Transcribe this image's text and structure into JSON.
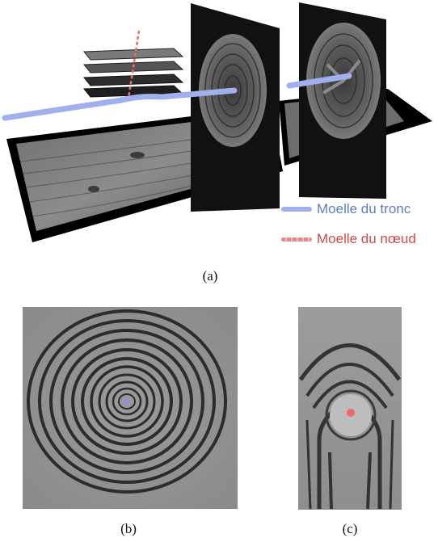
{
  "figure": {
    "legend": [
      {
        "label": "Moelle du tronc",
        "color": "#5d7bc8",
        "line_color": "#9fb0ec",
        "style": "solid"
      },
      {
        "label": "Moelle du nœud",
        "color": "#cf4a4a",
        "line_color": "#e58a8a",
        "style": "dashed"
      }
    ],
    "captions": {
      "a": "(a)",
      "b": "(b)",
      "c": "(c)"
    },
    "colors": {
      "trunk_pith": "#9fb0ec",
      "knot_pith": "#ee6a6a"
    }
  }
}
